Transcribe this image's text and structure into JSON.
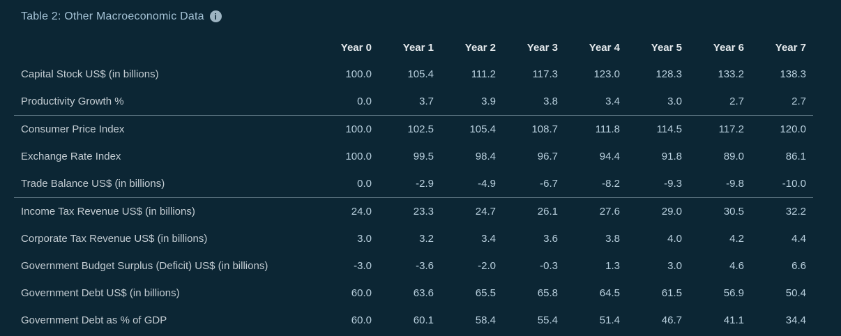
{
  "panel": {
    "title": "Table 2: Other Macroeconomic Data",
    "info_icon_glyph": "i"
  },
  "table": {
    "columns": [
      "Year 0",
      "Year 1",
      "Year 2",
      "Year 3",
      "Year 4",
      "Year 5",
      "Year 6",
      "Year 7"
    ],
    "rows": [
      {
        "label": "Capital Stock US$ (in billions)",
        "values": [
          "100.0",
          "105.4",
          "111.2",
          "117.3",
          "123.0",
          "128.3",
          "133.2",
          "138.3"
        ],
        "separator_after": false
      },
      {
        "label": "Productivity Growth %",
        "values": [
          "0.0",
          "3.7",
          "3.9",
          "3.8",
          "3.4",
          "3.0",
          "2.7",
          "2.7"
        ],
        "separator_after": true
      },
      {
        "label": "Consumer Price Index",
        "values": [
          "100.0",
          "102.5",
          "105.4",
          "108.7",
          "111.8",
          "114.5",
          "117.2",
          "120.0"
        ],
        "separator_after": false
      },
      {
        "label": "Exchange Rate Index",
        "values": [
          "100.0",
          "99.5",
          "98.4",
          "96.7",
          "94.4",
          "91.8",
          "89.0",
          "86.1"
        ],
        "separator_after": false
      },
      {
        "label": "Trade Balance US$ (in billions)",
        "values": [
          "0.0",
          "-2.9",
          "-4.9",
          "-6.7",
          "-8.2",
          "-9.3",
          "-9.8",
          "-10.0"
        ],
        "separator_after": true
      },
      {
        "label": "Income Tax Revenue US$ (in billions)",
        "values": [
          "24.0",
          "23.3",
          "24.7",
          "26.1",
          "27.6",
          "29.0",
          "30.5",
          "32.2"
        ],
        "separator_after": false
      },
      {
        "label": "Corporate Tax Revenue US$ (in billions)",
        "values": [
          "3.0",
          "3.2",
          "3.4",
          "3.6",
          "3.8",
          "4.0",
          "4.2",
          "4.4"
        ],
        "separator_after": false
      },
      {
        "label": "Government Budget Surplus (Deficit) US$ (in billions)",
        "values": [
          "-3.0",
          "-3.6",
          "-2.0",
          "-0.3",
          "1.3",
          "3.0",
          "4.6",
          "6.6"
        ],
        "separator_after": false
      },
      {
        "label": "Government Debt US$ (in billions)",
        "values": [
          "60.0",
          "63.6",
          "65.5",
          "65.8",
          "64.5",
          "61.5",
          "56.9",
          "50.4"
        ],
        "separator_after": false
      },
      {
        "label": "Government Debt as % of GDP",
        "values": [
          "60.0",
          "60.1",
          "58.4",
          "55.4",
          "51.4",
          "46.7",
          "41.1",
          "34.4"
        ],
        "separator_after": false
      }
    ]
  },
  "colors": {
    "background": "#0c2634",
    "title_text": "#a4c2d5",
    "header_text": "#e4e9ec",
    "label_text": "#c3ccd2",
    "value_text": "#b8cfdd",
    "separator": "rgba(164,186,198,0.55)",
    "info_icon_fill": "#9db4c2",
    "info_icon_glyph_color": "#0c2634"
  }
}
